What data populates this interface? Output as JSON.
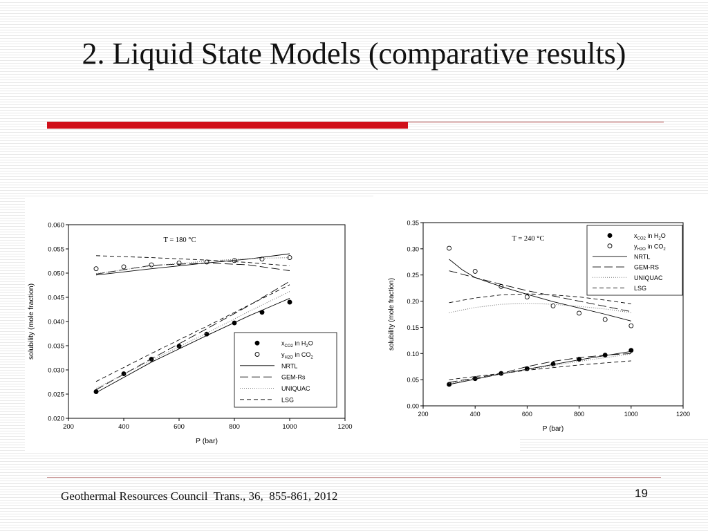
{
  "slide": {
    "title": "2. Liquid State Models (comparative results)",
    "citation": "Geothermal Resources Council  Trans., 36,  855-861, 2012",
    "page_number": "19",
    "accent_color": "#d0101a"
  },
  "chart_data": [
    {
      "type": "scatter",
      "annotation": "T = 180 °C",
      "xlabel": "P (bar)",
      "ylabel": "solubility (mole fraction)",
      "xlim": [
        200,
        1200
      ],
      "ylim": [
        0.02,
        0.06
      ],
      "xticks": [
        "200",
        "400",
        "600",
        "800",
        "1000",
        "1200"
      ],
      "yticks": [
        "0.020",
        "0.025",
        "0.030",
        "0.035",
        "0.040",
        "0.045",
        "0.050",
        "0.055",
        "0.060"
      ],
      "legend_position": "bottom-right",
      "legend": [
        {
          "label": "x_CO2 in H2O",
          "main": "x",
          "sub": "CO2",
          "mid": " in H",
          "sub2": "2",
          "end": "O",
          "kind": "filled-circle"
        },
        {
          "label": "y_H2O in CO2",
          "main": "y",
          "sub": "H2O",
          "mid": " in CO",
          "sub2": "2",
          "end": "",
          "kind": "open-circle"
        },
        {
          "label": "NRTL",
          "kind": "solid"
        },
        {
          "label": "GEM-Rs",
          "kind": "longdash"
        },
        {
          "label": "UNIQUAC",
          "kind": "dotted"
        },
        {
          "label": "LSG",
          "kind": "shortdash"
        }
      ],
      "series": [
        {
          "name": "x_CO2 in H2O",
          "kind": "filled-circle",
          "x": [
            300,
            400,
            500,
            600,
            700,
            800,
            900,
            1000
          ],
          "y": [
            0.0255,
            0.0292,
            0.0322,
            0.0349,
            0.0374,
            0.0397,
            0.0419,
            0.044
          ]
        },
        {
          "name": "y_H2O in CO2",
          "kind": "open-circle",
          "x": [
            300,
            400,
            500,
            600,
            700,
            800,
            900,
            1000
          ],
          "y": [
            0.0509,
            0.0513,
            0.0517,
            0.0521,
            0.0523,
            0.0526,
            0.0529,
            0.0532
          ]
        },
        {
          "name": "NRTL",
          "kind": "solid",
          "x": [
            300,
            500,
            700,
            850,
            1000
          ],
          "y": [
            0.0253,
            0.0316,
            0.0371,
            0.0411,
            0.0448
          ]
        },
        {
          "name": "NRTL",
          "kind": "solid",
          "x": [
            300,
            500,
            700,
            850,
            1000
          ],
          "y": [
            0.0496,
            0.0509,
            0.0521,
            0.0529,
            0.054
          ]
        },
        {
          "name": "GEM-Rs",
          "kind": "longdash",
          "x": [
            300,
            500,
            700,
            850,
            1000
          ],
          "y": [
            0.0259,
            0.0323,
            0.0385,
            0.0432,
            0.0483
          ]
        },
        {
          "name": "GEM-Rs",
          "kind": "longdash",
          "x": [
            300,
            500,
            700,
            850,
            1000
          ],
          "y": [
            0.0498,
            0.0516,
            0.0521,
            0.0517,
            0.0505
          ]
        },
        {
          "name": "UNIQUAC",
          "kind": "dotted",
          "x": [
            300,
            500,
            700,
            850,
            1000
          ],
          "y": [
            0.0262,
            0.032,
            0.0376,
            0.042,
            0.0462
          ]
        },
        {
          "name": "UNIQUAC",
          "kind": "dotted",
          "x": [
            300,
            500,
            700,
            850,
            1000
          ],
          "y": [
            0.0499,
            0.0515,
            0.0525,
            0.053,
            0.0532
          ]
        },
        {
          "name": "LSG",
          "kind": "shortdash",
          "x": [
            300,
            500,
            700,
            850,
            1000
          ],
          "y": [
            0.0276,
            0.0334,
            0.039,
            0.0433,
            0.0476
          ]
        },
        {
          "name": "LSG",
          "kind": "shortdash",
          "x": [
            300,
            500,
            700,
            850,
            1000
          ],
          "y": [
            0.0536,
            0.0532,
            0.0527,
            0.0522,
            0.0515
          ]
        }
      ]
    },
    {
      "type": "scatter",
      "annotation": "T = 240 °C",
      "xlabel": "P (bar)",
      "ylabel": "solubility (mole fraction)",
      "xlim": [
        200,
        1200
      ],
      "ylim": [
        0.0,
        0.35
      ],
      "xticks": [
        "200",
        "400",
        "600",
        "800",
        "1000",
        "1200"
      ],
      "yticks": [
        "0.00",
        "0.05",
        "0.10",
        "0.15",
        "0.20",
        "0.25",
        "0.30",
        "0.35"
      ],
      "legend_position": "top-right",
      "legend": [
        {
          "label": "x_CO2 in H2O",
          "main": "x",
          "sub": "CO2",
          "mid": " in H",
          "sub2": "2",
          "end": "O",
          "kind": "filled-circle"
        },
        {
          "label": "y_H2O in CO2",
          "main": "y",
          "sub": "H2O",
          "mid": " in CO",
          "sub2": "2",
          "end": "",
          "kind": "open-circle"
        },
        {
          "label": "NRTL",
          "kind": "solid"
        },
        {
          "label": "GEM-RS",
          "kind": "longdash"
        },
        {
          "label": "UNIQUAC",
          "kind": "dotted"
        },
        {
          "label": "LSG",
          "kind": "shortdash"
        }
      ],
      "series": [
        {
          "name": "x_CO2 in H2O",
          "kind": "filled-circle",
          "x": [
            300,
            400,
            500,
            600,
            700,
            800,
            900,
            1000
          ],
          "y": [
            0.041,
            0.052,
            0.062,
            0.071,
            0.08,
            0.089,
            0.097,
            0.106
          ]
        },
        {
          "name": "y_H2O in CO2",
          "kind": "open-circle",
          "x": [
            300,
            400,
            500,
            600,
            700,
            800,
            900,
            1000
          ],
          "y": [
            0.301,
            0.257,
            0.228,
            0.208,
            0.191,
            0.177,
            0.165,
            0.153
          ]
        },
        {
          "name": "NRTL",
          "kind": "solid",
          "x": [
            300,
            400,
            500,
            600,
            700,
            800,
            900,
            1000
          ],
          "y": [
            0.041,
            0.051,
            0.061,
            0.07,
            0.079,
            0.088,
            0.096,
            0.104
          ]
        },
        {
          "name": "NRTL",
          "kind": "solid",
          "x": [
            300,
            350,
            400,
            500,
            600,
            700,
            800,
            900,
            1000
          ],
          "y": [
            0.28,
            0.26,
            0.245,
            0.228,
            0.213,
            0.199,
            0.187,
            0.175,
            0.162
          ]
        },
        {
          "name": "GEM-RS",
          "kind": "longdash",
          "x": [
            300,
            400,
            500,
            600,
            700,
            800,
            900,
            1000
          ],
          "y": [
            0.045,
            0.053,
            0.062,
            0.075,
            0.085,
            0.092,
            0.097,
            0.1
          ]
        },
        {
          "name": "GEM-RS",
          "kind": "longdash",
          "x": [
            300,
            400,
            500,
            600,
            700,
            800,
            900,
            1000
          ],
          "y": [
            0.258,
            0.245,
            0.232,
            0.22,
            0.21,
            0.2,
            0.19,
            0.18
          ]
        },
        {
          "name": "UNIQUAC",
          "kind": "dotted",
          "x": [
            300,
            400,
            500,
            600,
            700,
            800,
            900,
            1000
          ],
          "y": [
            0.043,
            0.052,
            0.061,
            0.069,
            0.077,
            0.085,
            0.092,
            0.099
          ]
        },
        {
          "name": "UNIQUAC",
          "kind": "dotted",
          "x": [
            300,
            400,
            500,
            600,
            700,
            800,
            900,
            1000
          ],
          "y": [
            0.178,
            0.188,
            0.194,
            0.196,
            0.194,
            0.19,
            0.185,
            0.178
          ]
        },
        {
          "name": "LSG",
          "kind": "shortdash",
          "x": [
            300,
            400,
            500,
            600,
            700,
            800,
            900,
            1000
          ],
          "y": [
            0.05,
            0.056,
            0.062,
            0.068,
            0.073,
            0.078,
            0.082,
            0.086
          ]
        },
        {
          "name": "LSG",
          "kind": "shortdash",
          "x": [
            300,
            400,
            500,
            600,
            700,
            800,
            900,
            1000
          ],
          "y": [
            0.197,
            0.206,
            0.212,
            0.214,
            0.212,
            0.208,
            0.202,
            0.195
          ]
        }
      ]
    }
  ]
}
